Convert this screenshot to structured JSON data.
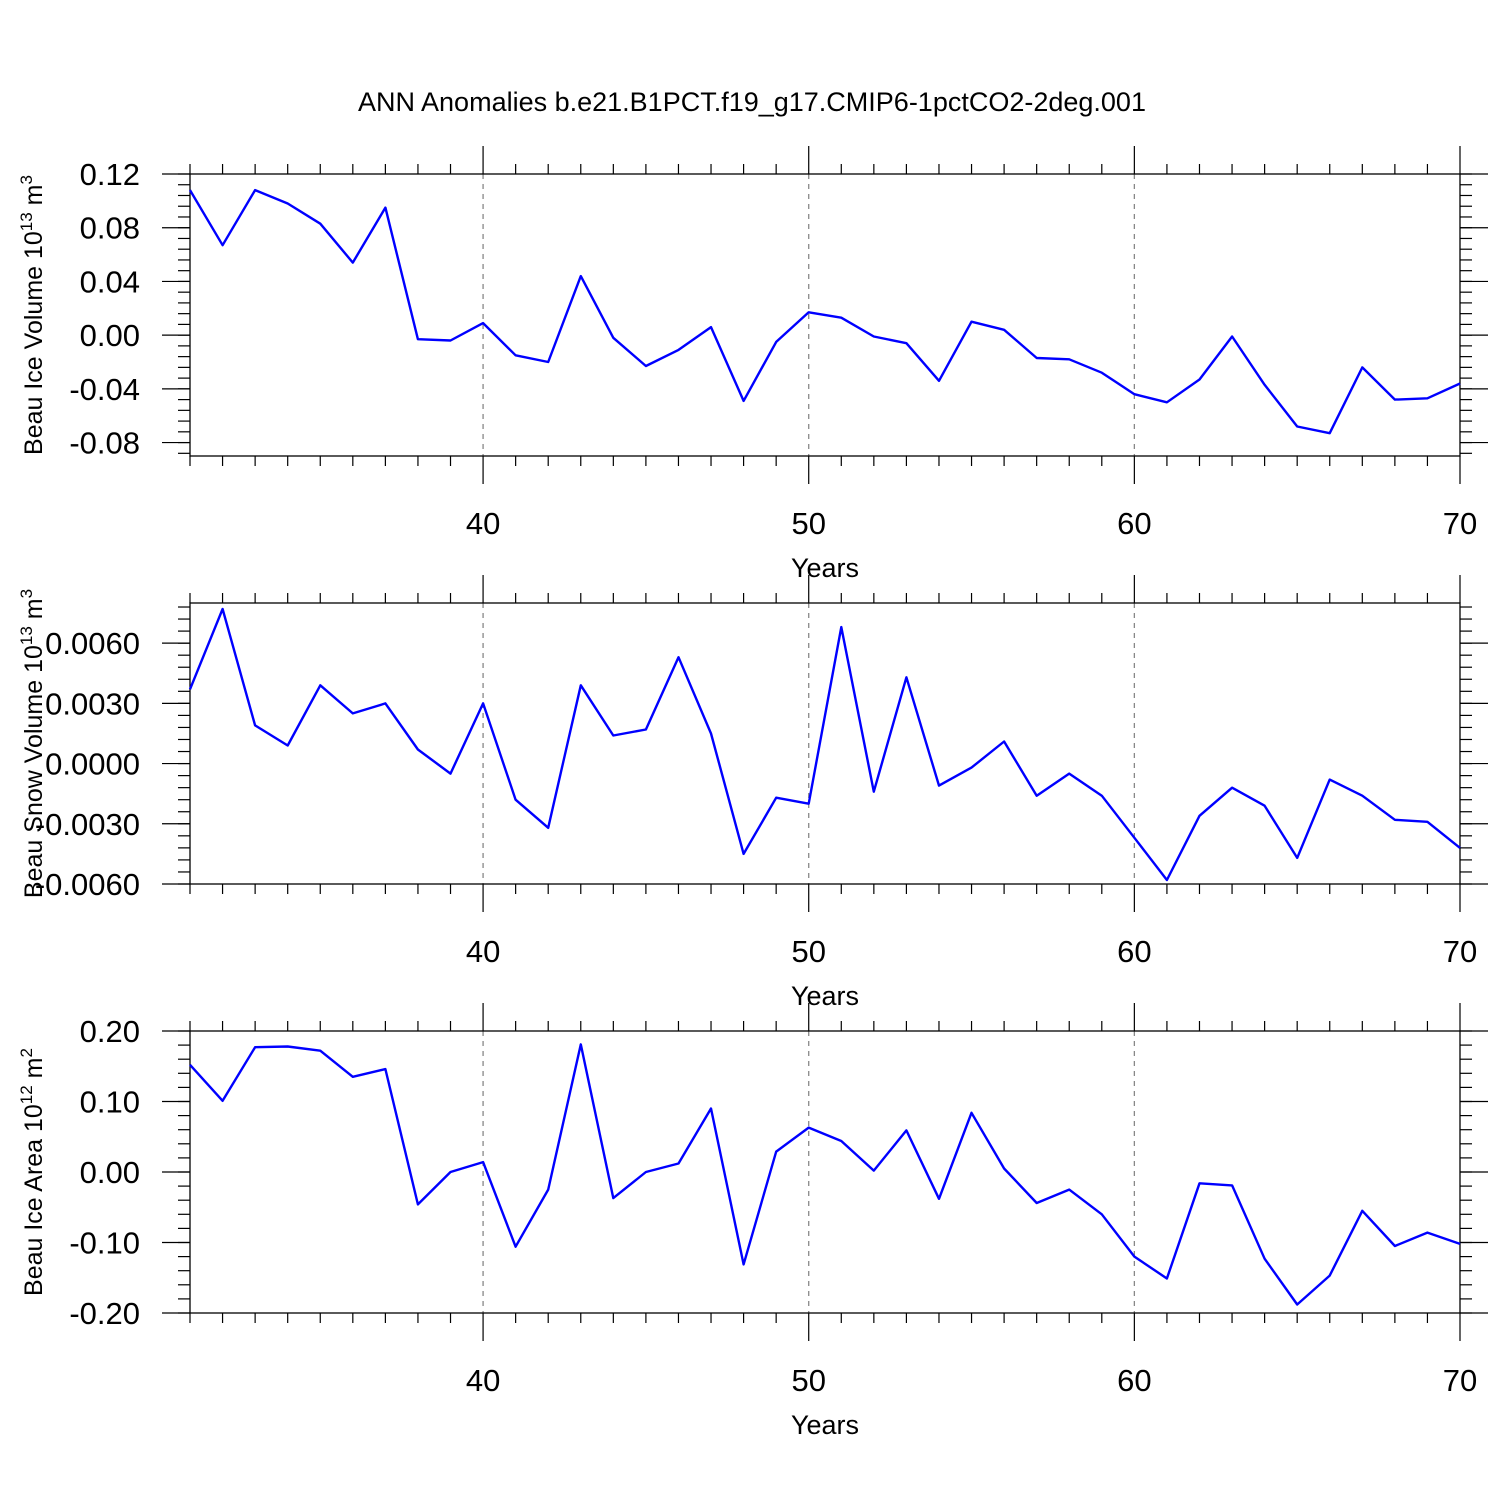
{
  "title": "ANN Anomalies b.e21.B1PCT.f19_g17.CMIP6-1pctCO2-2deg.001",
  "colors": {
    "series": "#0000ff",
    "grid": "#888888",
    "axis": "#000000"
  },
  "chart_data": [
    {
      "type": "line",
      "xlabel": "Years",
      "ylabel": "Beau Ice Volume 10",
      "ylabel_sup": "13",
      "ylabel_unit": " m",
      "ylabel_unit_sup": "3",
      "xlim": [
        31,
        70
      ],
      "ylim": [
        -0.09,
        0.12
      ],
      "grid": "vertical dashed at major x ticks",
      "x_ticks": [
        40,
        50,
        60,
        70
      ],
      "x_tick_labels": [
        "40",
        "50",
        "60",
        "70"
      ],
      "y_ticks": [
        0.12,
        0.08,
        0.04,
        0.0,
        -0.04,
        -0.08
      ],
      "y_tick_labels": [
        "0.12",
        "0.08",
        "0.04",
        "0.00",
        "-0.04",
        "-0.08"
      ],
      "x": [
        31,
        32,
        33,
        34,
        35,
        36,
        37,
        38,
        39,
        40,
        41,
        42,
        43,
        44,
        45,
        46,
        47,
        48,
        49,
        50,
        51,
        52,
        53,
        54,
        55,
        56,
        57,
        58,
        59,
        60,
        61,
        62,
        63,
        64,
        65,
        66,
        67,
        68,
        69,
        70
      ],
      "values": [
        0.108,
        0.067,
        0.108,
        0.098,
        0.083,
        0.054,
        0.095,
        -0.003,
        -0.004,
        0.009,
        -0.015,
        -0.02,
        0.044,
        -0.002,
        -0.023,
        -0.011,
        0.006,
        -0.049,
        -0.005,
        0.017,
        0.013,
        -0.001,
        -0.006,
        -0.034,
        0.01,
        0.004,
        -0.017,
        -0.018,
        -0.028,
        -0.044,
        -0.05,
        -0.033,
        -0.001,
        -0.037,
        -0.068,
        -0.073,
        -0.024,
        -0.048,
        -0.047,
        -0.036
      ]
    },
    {
      "type": "line",
      "xlabel": "Years",
      "ylabel": "Beau Snow Volume 10",
      "ylabel_sup": "13",
      "ylabel_unit": " m",
      "ylabel_unit_sup": "3",
      "xlim": [
        31,
        70
      ],
      "ylim": [
        -0.006,
        0.008
      ],
      "grid": "vertical dashed at major x ticks",
      "x_ticks": [
        40,
        50,
        60,
        70
      ],
      "x_tick_labels": [
        "40",
        "50",
        "60",
        "70"
      ],
      "y_ticks": [
        0.006,
        0.003,
        0.0,
        -0.003,
        -0.006
      ],
      "y_tick_labels": [
        "0.0060",
        "0.0030",
        "0.0000",
        "-0.0030",
        "-0.0060"
      ],
      "x": [
        31,
        32,
        33,
        34,
        35,
        36,
        37,
        38,
        39,
        40,
        41,
        42,
        43,
        44,
        45,
        46,
        47,
        48,
        49,
        50,
        51,
        52,
        53,
        54,
        55,
        56,
        57,
        58,
        59,
        60,
        61,
        62,
        63,
        64,
        65,
        66,
        67,
        68,
        69,
        70
      ],
      "values": [
        0.0037,
        0.0077,
        0.0019,
        0.0009,
        0.0039,
        0.0025,
        0.003,
        0.0007,
        -0.0005,
        0.003,
        -0.0018,
        -0.0032,
        0.0039,
        0.0014,
        0.0017,
        0.0053,
        0.0015,
        -0.0045,
        -0.0017,
        -0.002,
        0.0068,
        -0.0014,
        0.0043,
        -0.0011,
        -0.0002,
        0.0011,
        -0.0016,
        -0.0005,
        -0.0016,
        -0.0037,
        -0.0058,
        -0.0026,
        -0.0012,
        -0.0021,
        -0.0047,
        -0.0008,
        -0.0016,
        -0.0028,
        -0.0029,
        -0.0042
      ]
    },
    {
      "type": "line",
      "xlabel": "Years",
      "ylabel": "Beau Ice Area 10",
      "ylabel_sup": "12",
      "ylabel_unit": " m",
      "ylabel_unit_sup": "2",
      "xlim": [
        31,
        70
      ],
      "ylim": [
        -0.2,
        0.2
      ],
      "grid": "vertical dashed at major x ticks",
      "x_ticks": [
        40,
        50,
        60,
        70
      ],
      "x_tick_labels": [
        "40",
        "50",
        "60",
        "70"
      ],
      "y_ticks": [
        0.2,
        0.1,
        0.0,
        -0.1,
        -0.2
      ],
      "y_tick_labels": [
        "0.20",
        "0.10",
        "0.00",
        "-0.10",
        "-0.20"
      ],
      "x": [
        31,
        32,
        33,
        34,
        35,
        36,
        37,
        38,
        39,
        40,
        41,
        42,
        43,
        44,
        45,
        46,
        47,
        48,
        49,
        50,
        51,
        52,
        53,
        54,
        55,
        56,
        57,
        58,
        59,
        60,
        61,
        62,
        63,
        64,
        65,
        66,
        67,
        68,
        69,
        70
      ],
      "values": [
        0.152,
        0.101,
        0.177,
        0.178,
        0.172,
        0.135,
        0.146,
        -0.046,
        0.0,
        0.014,
        -0.106,
        -0.025,
        0.181,
        -0.037,
        0.0,
        0.012,
        0.09,
        -0.131,
        0.029,
        0.063,
        0.044,
        0.002,
        0.059,
        -0.038,
        0.084,
        0.005,
        -0.044,
        -0.025,
        -0.06,
        -0.12,
        -0.151,
        -0.016,
        -0.019,
        -0.123,
        -0.188,
        -0.147,
        -0.055,
        -0.105,
        -0.086,
        -0.102
      ]
    }
  ]
}
